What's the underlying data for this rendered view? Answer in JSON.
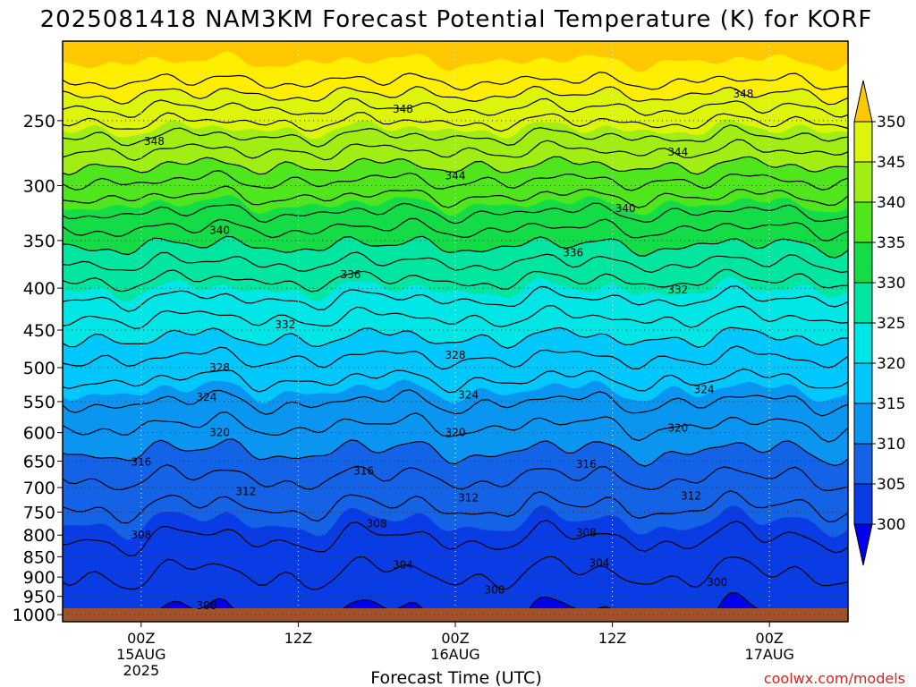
{
  "chart_data": {
    "type": "contour",
    "title": "2025081418 NAM3KM Forecast Potential Temperature (K) for KORF",
    "xlabel": "Forecast Time (UTC)",
    "ylabel": "",
    "y_ticks": [
      {
        "label": "250",
        "p": 250
      },
      {
        "label": "300",
        "p": 300
      },
      {
        "label": "350",
        "p": 350
      },
      {
        "label": "400",
        "p": 400
      },
      {
        "label": "450",
        "p": 450
      },
      {
        "label": "500",
        "p": 500
      },
      {
        "label": "550",
        "p": 550
      },
      {
        "label": "600",
        "p": 600
      },
      {
        "label": "650",
        "p": 650
      },
      {
        "label": "700",
        "p": 700
      },
      {
        "label": "750",
        "p": 750
      },
      {
        "label": "800",
        "p": 800
      },
      {
        "label": "850",
        "p": 850
      },
      {
        "label": "900",
        "p": 900
      },
      {
        "label": "950",
        "p": 950
      },
      {
        "label": "1000",
        "p": 1000
      }
    ],
    "x_ticks": [
      {
        "line1": "00Z",
        "line2": "15AUG",
        "line3": "2025",
        "hour": 6
      },
      {
        "line1": "12Z",
        "line2": "",
        "line3": "",
        "hour": 18
      },
      {
        "line1": "00Z",
        "line2": "16AUG",
        "line3": "",
        "hour": 30
      },
      {
        "line1": "12Z",
        "line2": "",
        "line3": "",
        "hour": 42
      },
      {
        "line1": "00Z",
        "line2": "17AUG",
        "line3": "",
        "hour": 54
      }
    ],
    "x_range_hours": [
      0,
      60
    ],
    "colorbar": {
      "labels": [
        "300",
        "305",
        "310",
        "315",
        "320",
        "325",
        "330",
        "335",
        "340",
        "345",
        "350"
      ],
      "colors": [
        "#0000ee",
        "#0a3ce6",
        "#1463e6",
        "#0a96f0",
        "#00c8ff",
        "#00e6e6",
        "#00e6a0",
        "#14dc46",
        "#50e61e",
        "#a0ee14",
        "#dcf50a",
        "#ffee00",
        "#ffc800"
      ]
    },
    "contour_labels": [
      {
        "text": "348",
        "hour": 7,
        "p": 265
      },
      {
        "text": "348",
        "hour": 26,
        "p": 242
      },
      {
        "text": "348",
        "hour": 52,
        "p": 232
      },
      {
        "text": "344",
        "hour": 30,
        "p": 292
      },
      {
        "text": "344",
        "hour": 47,
        "p": 273
      },
      {
        "text": "340",
        "hour": 12,
        "p": 340
      },
      {
        "text": "340",
        "hour": 43,
        "p": 320
      },
      {
        "text": "336",
        "hour": 22,
        "p": 385
      },
      {
        "text": "336",
        "hour": 39,
        "p": 362
      },
      {
        "text": "332",
        "hour": 17,
        "p": 443
      },
      {
        "text": "332",
        "hour": 47,
        "p": 402
      },
      {
        "text": "328",
        "hour": 12,
        "p": 500
      },
      {
        "text": "328",
        "hour": 30,
        "p": 483
      },
      {
        "text": "324",
        "hour": 11,
        "p": 543
      },
      {
        "text": "324",
        "hour": 31,
        "p": 540
      },
      {
        "text": "324",
        "hour": 49,
        "p": 532
      },
      {
        "text": "320",
        "hour": 12,
        "p": 600
      },
      {
        "text": "320",
        "hour": 30,
        "p": 600
      },
      {
        "text": "320",
        "hour": 47,
        "p": 592
      },
      {
        "text": "316",
        "hour": 6,
        "p": 652
      },
      {
        "text": "316",
        "hour": 23,
        "p": 668
      },
      {
        "text": "316",
        "hour": 40,
        "p": 656
      },
      {
        "text": "312",
        "hour": 14,
        "p": 708
      },
      {
        "text": "312",
        "hour": 31,
        "p": 720
      },
      {
        "text": "312",
        "hour": 48,
        "p": 717
      },
      {
        "text": "308",
        "hour": 6,
        "p": 800
      },
      {
        "text": "308",
        "hour": 24,
        "p": 775
      },
      {
        "text": "308",
        "hour": 40,
        "p": 795
      },
      {
        "text": "304",
        "hour": 26,
        "p": 870
      },
      {
        "text": "304",
        "hour": 41,
        "p": 865
      },
      {
        "text": "300",
        "hour": 11,
        "p": 975
      },
      {
        "text": "300",
        "hour": 33,
        "p": 933
      },
      {
        "text": "300",
        "hour": 50,
        "p": 913
      }
    ],
    "ground_color": "#a0522d",
    "grid": "dotted"
  },
  "credit": "coolwx.com/models"
}
